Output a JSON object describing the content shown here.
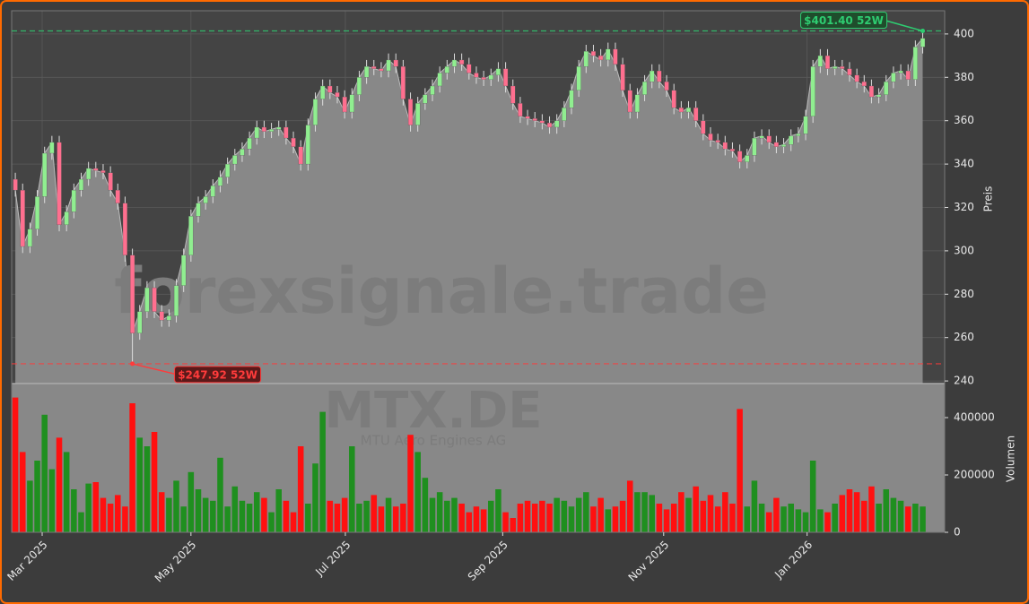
{
  "chart_data": {
    "type": "candlestick",
    "watermarks": [
      "forexsignale.trade",
      "MTX.DE",
      "MTU Aero Engines AG"
    ],
    "ylabel": "Preis",
    "volume_label": "Volumen",
    "up_color": "#90ee90",
    "down_color": "#ff6f8f",
    "volume_up_color": "#1f8f1f",
    "volume_down_color": "#ff1010",
    "area_color": "#888888",
    "grid": true,
    "xlim": [
      -0.5,
      127
    ],
    "xticks": [
      {
        "value": 3.67,
        "label": "Mar 2025"
      },
      {
        "value": 24.0,
        "label": "May 2025"
      },
      {
        "value": 45.1,
        "label": "Jul 2025"
      },
      {
        "value": 66.6,
        "label": "Sep 2025"
      },
      {
        "value": 88.6,
        "label": "Nov 2025"
      },
      {
        "value": 108.2,
        "label": "Jan 2026"
      }
    ],
    "ylim": [
      238.8,
      410.7
    ],
    "yticks": [
      240,
      260,
      280,
      300,
      320,
      340,
      360,
      380,
      400
    ],
    "volume_ylim": [
      0,
      518750
    ],
    "volume_yticks": [
      0,
      200000,
      400000
    ],
    "annotations": [
      {
        "text": "$401.40 52W",
        "value": 401.4,
        "color": "#2ecc71"
      },
      {
        "text": "$247.92 52W",
        "value": 247.92,
        "color": "#ff3b3b"
      }
    ],
    "open": [
      333,
      328,
      302,
      310,
      325,
      345,
      350,
      312,
      318,
      328,
      333,
      338,
      337,
      336,
      328,
      322,
      298,
      262,
      272,
      283,
      272,
      268,
      270,
      284,
      298,
      316,
      322,
      325,
      330,
      334,
      340,
      344,
      347,
      352,
      357,
      355,
      356,
      357,
      352,
      348,
      340,
      358,
      370,
      376,
      373,
      371,
      364,
      372,
      380,
      385,
      384,
      383,
      388,
      385,
      370,
      358,
      368,
      372,
      376,
      382,
      385,
      388,
      386,
      382,
      380,
      379,
      381,
      384,
      376,
      368,
      362,
      361,
      360,
      359,
      357,
      360,
      366,
      374,
      385,
      392,
      390,
      388,
      393,
      386,
      374,
      364,
      372,
      378,
      383,
      378,
      374,
      366,
      364,
      366,
      360,
      354,
      351,
      350,
      347,
      346,
      341,
      344,
      352,
      353,
      350,
      348,
      349,
      353,
      354,
      362,
      385,
      390,
      384,
      385,
      384,
      381,
      378,
      376,
      371,
      372,
      378,
      382,
      383,
      379,
      394
    ],
    "high": [
      336,
      331,
      313,
      328,
      348,
      353,
      353,
      321,
      331,
      336,
      341,
      341,
      340,
      339,
      331,
      325,
      301,
      275,
      286,
      286,
      275,
      273,
      287,
      301,
      319,
      325,
      328,
      333,
      337,
      343,
      347,
      350,
      355,
      360,
      360,
      359,
      360,
      360,
      355,
      351,
      361,
      373,
      379,
      379,
      376,
      374,
      375,
      383,
      388,
      388,
      387,
      391,
      391,
      388,
      373,
      371,
      375,
      379,
      385,
      388,
      391,
      391,
      389,
      385,
      383,
      384,
      387,
      387,
      379,
      371,
      365,
      364,
      363,
      362,
      363,
      369,
      377,
      388,
      395,
      395,
      393,
      396,
      396,
      389,
      377,
      375,
      381,
      386,
      386,
      381,
      377,
      369,
      369,
      369,
      363,
      357,
      354,
      353,
      350,
      349,
      347,
      355,
      356,
      356,
      353,
      352,
      356,
      357,
      365,
      388,
      393,
      393,
      388,
      388,
      387,
      384,
      381,
      379,
      375,
      381,
      385,
      386,
      386,
      397,
      401.4
    ],
    "low": [
      325,
      299,
      299,
      307,
      322,
      342,
      309,
      309,
      315,
      325,
      330,
      334,
      333,
      325,
      319,
      295,
      247.92,
      259,
      269,
      269,
      265,
      265,
      267,
      281,
      295,
      313,
      319,
      322,
      327,
      331,
      337,
      341,
      344,
      349,
      352,
      352,
      353,
      349,
      345,
      337,
      337,
      355,
      367,
      370,
      368,
      361,
      361,
      369,
      377,
      381,
      380,
      380,
      382,
      367,
      355,
      355,
      365,
      369,
      373,
      379,
      382,
      383,
      379,
      377,
      376,
      376,
      378,
      373,
      365,
      359,
      358,
      357,
      356,
      354,
      354,
      357,
      363,
      371,
      382,
      387,
      385,
      385,
      383,
      371,
      361,
      361,
      369,
      375,
      375,
      371,
      363,
      361,
      361,
      357,
      351,
      348,
      347,
      344,
      343,
      338,
      338,
      341,
      349,
      347,
      345,
      345,
      346,
      350,
      351,
      359,
      382,
      381,
      381,
      381,
      378,
      375,
      373,
      368,
      368,
      369,
      375,
      379,
      376,
      376,
      391
    ],
    "close": [
      328,
      302,
      310,
      325,
      345,
      350,
      312,
      318,
      328,
      333,
      338,
      337,
      336,
      328,
      322,
      298,
      262,
      272,
      283,
      272,
      268,
      270,
      284,
      298,
      316,
      322,
      325,
      330,
      334,
      340,
      344,
      347,
      352,
      357,
      355,
      356,
      357,
      352,
      348,
      340,
      358,
      370,
      376,
      373,
      371,
      364,
      372,
      380,
      385,
      384,
      383,
      388,
      385,
      370,
      358,
      368,
      372,
      376,
      382,
      385,
      388,
      386,
      382,
      380,
      379,
      381,
      384,
      376,
      368,
      362,
      361,
      360,
      359,
      357,
      360,
      366,
      374,
      385,
      392,
      390,
      388,
      393,
      386,
      374,
      364,
      372,
      378,
      383,
      378,
      374,
      366,
      364,
      366,
      360,
      354,
      351,
      350,
      347,
      346,
      341,
      344,
      352,
      353,
      350,
      348,
      349,
      353,
      354,
      362,
      385,
      390,
      384,
      385,
      384,
      381,
      378,
      376,
      371,
      372,
      378,
      382,
      383,
      379,
      394,
      398
    ],
    "volume": [
      470000,
      280000,
      180000,
      250000,
      410000,
      220000,
      330000,
      280000,
      150000,
      70000,
      170000,
      175000,
      120000,
      100000,
      130000,
      90000,
      450000,
      330000,
      300000,
      350000,
      140000,
      120000,
      180000,
      90000,
      210000,
      150000,
      120000,
      110000,
      260000,
      90000,
      160000,
      110000,
      100000,
      140000,
      120000,
      70000,
      150000,
      110000,
      70000,
      300000,
      100000,
      240000,
      420000,
      110000,
      100000,
      120000,
      300000,
      100000,
      110000,
      130000,
      90000,
      120000,
      90000,
      100000,
      340000,
      280000,
      190000,
      120000,
      140000,
      110000,
      120000,
      100000,
      70000,
      90000,
      80000,
      110000,
      150000,
      70000,
      50000,
      100000,
      110000,
      100000,
      110000,
      100000,
      120000,
      110000,
      90000,
      120000,
      140000,
      90000,
      120000,
      80000,
      90000,
      110000,
      180000,
      140000,
      140000,
      130000,
      100000,
      80000,
      100000,
      140000,
      120000,
      160000,
      110000,
      130000,
      90000,
      140000,
      100000,
      430000,
      90000,
      180000,
      100000,
      70000,
      120000,
      90000,
      100000,
      80000,
      70000,
      250000,
      80000,
      70000,
      100000,
      130000,
      150000,
      140000,
      110000,
      160000,
      100000,
      150000,
      120000,
      110000,
      90000,
      100000,
      90000
    ]
  }
}
